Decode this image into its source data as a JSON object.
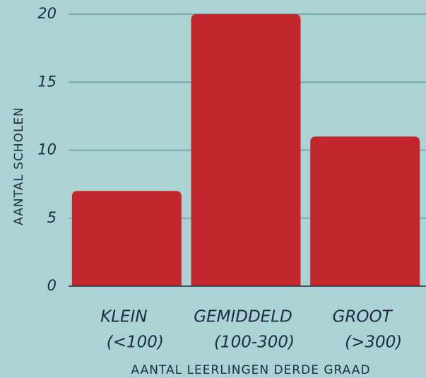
{
  "chart_data": {
    "type": "bar",
    "categories": [
      [
        "KLEIN",
        "(<100)"
      ],
      [
        "GEMIDDELD",
        "(100-300)"
      ],
      [
        "GROOT",
        "(>300)"
      ]
    ],
    "values": [
      7,
      20,
      11
    ],
    "color": "#c1272d",
    "ylim": [
      0,
      20
    ],
    "yticks": [
      0,
      5,
      10,
      15,
      20
    ],
    "grid": true,
    "y_label": "AANTAL SCHOLEN",
    "x_label": "AANTAL LEERLINGEN DERDE GRAAD"
  }
}
